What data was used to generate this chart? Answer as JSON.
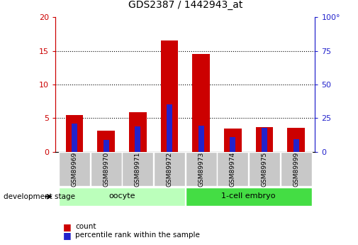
{
  "title": "GDS2387 / 1442943_at",
  "samples": [
    "GSM89969",
    "GSM89970",
    "GSM89971",
    "GSM89972",
    "GSM89973",
    "GSM89974",
    "GSM89975",
    "GSM89999"
  ],
  "count_values": [
    5.5,
    3.2,
    5.9,
    16.5,
    14.5,
    3.5,
    3.7,
    3.6
  ],
  "percentile_values": [
    4.2,
    1.8,
    3.8,
    7.0,
    3.9,
    2.2,
    3.6,
    1.9
  ],
  "left_ylim": [
    0,
    20
  ],
  "right_ylim": [
    0,
    100
  ],
  "left_yticks": [
    0,
    5,
    10,
    15,
    20
  ],
  "right_yticks": [
    0,
    25,
    50,
    75,
    100
  ],
  "right_yticklabels": [
    "0",
    "25",
    "50",
    "75",
    "100°"
  ],
  "bar_color_red": "#cc0000",
  "bar_color_blue": "#2222cc",
  "bar_width": 0.55,
  "blue_bar_width": 0.18,
  "background_color": "#ffffff",
  "tick_color_left": "#cc0000",
  "tick_color_right": "#2222cc",
  "xticklabel_bg": "#c8c8c8",
  "oocyte_color": "#bbffbb",
  "embryo_color": "#44dd44",
  "dev_stage_label": "development stage",
  "legend_count": "count",
  "legend_percentile": "percentile rank within the sample",
  "group_oocyte_indices": [
    0,
    1,
    2,
    3
  ],
  "group_embryo_indices": [
    4,
    5,
    6,
    7
  ]
}
